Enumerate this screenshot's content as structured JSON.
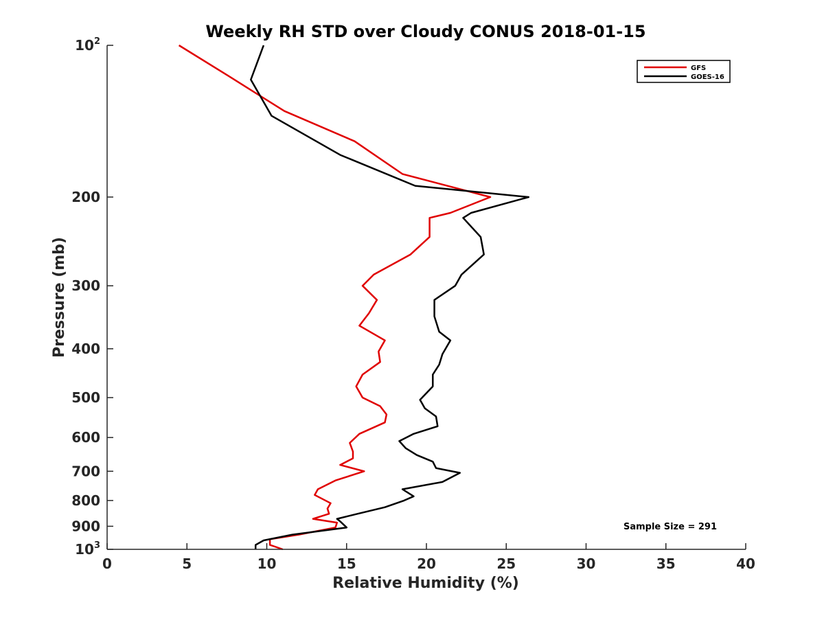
{
  "chart_data": {
    "type": "line",
    "title": "Weekly RH STD over Cloudy CONUS 2018-01-15",
    "xlabel": "Relative Humidity (%)",
    "ylabel": "Pressure (mb)",
    "xlim": [
      0,
      40
    ],
    "ylim": [
      100,
      1000
    ],
    "y_scale": "log",
    "y_reversed": true,
    "grid": false,
    "legend_position": "top-right",
    "x_ticks": [
      0,
      5,
      10,
      15,
      20,
      25,
      30,
      35,
      40
    ],
    "y_ticks": [
      {
        "value": 100,
        "base": "10",
        "exp": "2"
      },
      {
        "value": 200,
        "label": "200"
      },
      {
        "value": 300,
        "label": "300"
      },
      {
        "value": 400,
        "label": "400"
      },
      {
        "value": 500,
        "label": "500"
      },
      {
        "value": 600,
        "label": "600"
      },
      {
        "value": 700,
        "label": "700"
      },
      {
        "value": 800,
        "label": "800"
      },
      {
        "value": 900,
        "label": "900"
      },
      {
        "value": 1000,
        "base": "10",
        "exp": "3"
      }
    ],
    "annotation": "Sample Size = 291",
    "series": [
      {
        "name": "GFS",
        "color": "#e00000",
        "points": [
          [
            4.5,
            100
          ],
          [
            7.6,
            115
          ],
          [
            11.1,
            135
          ],
          [
            15.5,
            155
          ],
          [
            18.5,
            180
          ],
          [
            24.0,
            200
          ],
          [
            21.5,
            215
          ],
          [
            20.2,
            220
          ],
          [
            20.2,
            240
          ],
          [
            19.0,
            260
          ],
          [
            16.7,
            285
          ],
          [
            16.0,
            300
          ],
          [
            16.9,
            320
          ],
          [
            16.4,
            340
          ],
          [
            15.8,
            360
          ],
          [
            17.4,
            385
          ],
          [
            17.0,
            405
          ],
          [
            17.1,
            425
          ],
          [
            16.0,
            450
          ],
          [
            15.6,
            475
          ],
          [
            16.0,
            500
          ],
          [
            17.1,
            520
          ],
          [
            17.5,
            540
          ],
          [
            17.4,
            560
          ],
          [
            15.8,
            590
          ],
          [
            15.2,
            615
          ],
          [
            15.4,
            640
          ],
          [
            15.4,
            660
          ],
          [
            14.6,
            680
          ],
          [
            16.1,
            700
          ],
          [
            14.3,
            730
          ],
          [
            13.2,
            760
          ],
          [
            13.0,
            780
          ],
          [
            14.0,
            810
          ],
          [
            13.8,
            830
          ],
          [
            13.9,
            850
          ],
          [
            12.9,
            870
          ],
          [
            14.4,
            885
          ],
          [
            14.3,
            905
          ],
          [
            12.0,
            935
          ],
          [
            10.2,
            955
          ],
          [
            10.2,
            980
          ],
          [
            11.0,
            1000
          ]
        ]
      },
      {
        "name": "GOES-16",
        "color": "#000000",
        "points": [
          [
            9.8,
            100
          ],
          [
            9.0,
            117
          ],
          [
            10.3,
            138
          ],
          [
            14.6,
            165
          ],
          [
            19.3,
            190
          ],
          [
            26.4,
            200
          ],
          [
            22.8,
            215
          ],
          [
            22.3,
            220
          ],
          [
            23.4,
            240
          ],
          [
            23.6,
            260
          ],
          [
            22.2,
            285
          ],
          [
            21.8,
            300
          ],
          [
            20.5,
            320
          ],
          [
            20.5,
            345
          ],
          [
            20.8,
            370
          ],
          [
            21.5,
            385
          ],
          [
            21.0,
            410
          ],
          [
            20.8,
            430
          ],
          [
            20.4,
            450
          ],
          [
            20.4,
            475
          ],
          [
            19.6,
            505
          ],
          [
            19.9,
            525
          ],
          [
            20.6,
            545
          ],
          [
            20.7,
            570
          ],
          [
            19.2,
            590
          ],
          [
            18.3,
            610
          ],
          [
            18.7,
            630
          ],
          [
            19.4,
            650
          ],
          [
            20.4,
            670
          ],
          [
            20.6,
            690
          ],
          [
            22.1,
            705
          ],
          [
            21.0,
            735
          ],
          [
            18.5,
            760
          ],
          [
            19.2,
            785
          ],
          [
            18.6,
            800
          ],
          [
            17.4,
            825
          ],
          [
            15.7,
            850
          ],
          [
            14.4,
            870
          ],
          [
            14.6,
            880
          ],
          [
            15.0,
            905
          ],
          [
            11.6,
            935
          ],
          [
            9.8,
            960
          ],
          [
            9.3,
            980
          ],
          [
            9.3,
            1000
          ]
        ]
      }
    ]
  }
}
